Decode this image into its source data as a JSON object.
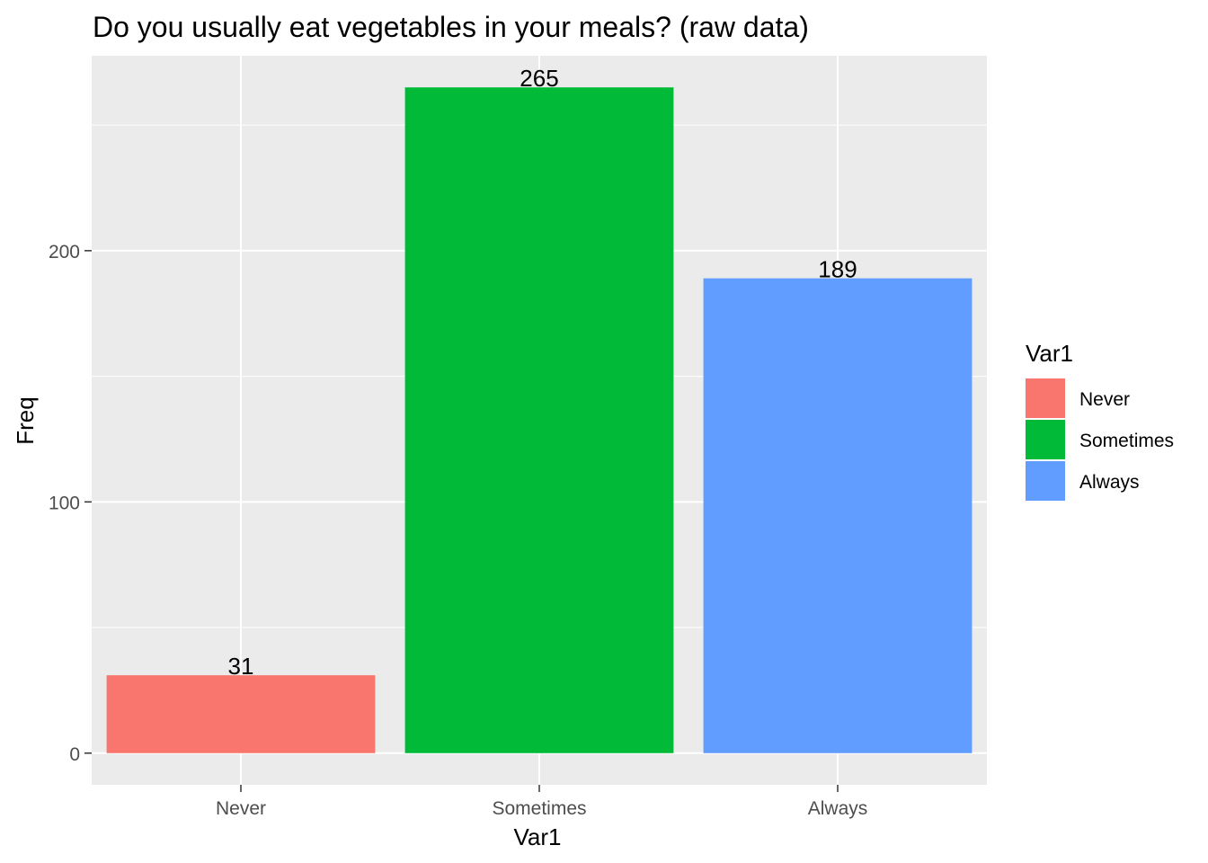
{
  "chart_data": {
    "type": "bar",
    "title": "Do you usually eat vegetables in your meals? (raw data)",
    "xlabel": "Var1",
    "ylabel": "Freq",
    "categories": [
      "Never",
      "Sometimes",
      "Always"
    ],
    "values": [
      31,
      265,
      189
    ],
    "colors": [
      "#F8766D",
      "#00BA38",
      "#619CFF"
    ],
    "ylim": [
      -12.6,
      277.6
    ],
    "yticks": [
      0,
      100,
      200
    ],
    "yminor": [
      50,
      150,
      250
    ],
    "grid": true,
    "panel_background": "#EBEBEB",
    "legend": {
      "title": "Var1",
      "position": "right",
      "items": [
        "Never",
        "Sometimes",
        "Always"
      ]
    }
  }
}
